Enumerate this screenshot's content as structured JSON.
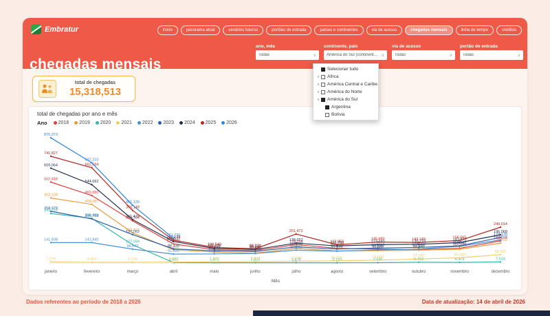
{
  "brand": {
    "name": "Embratur"
  },
  "nav": {
    "items": [
      {
        "label": "início",
        "active": false
      },
      {
        "label": "panorama atual",
        "active": false
      },
      {
        "label": "cenários futuros",
        "active": false
      },
      {
        "label": "portões de entrada",
        "active": false
      },
      {
        "label": "países e continentes",
        "active": false
      },
      {
        "label": "via de acesso",
        "active": false
      },
      {
        "label": "chegadas mensais",
        "active": true
      },
      {
        "label": "linha de tempo",
        "active": false
      },
      {
        "label": "créditos",
        "active": false
      }
    ]
  },
  "page_title": "chegadas mensais",
  "filters": [
    {
      "label": "ano, mês",
      "value": "Todas"
    },
    {
      "label": "continente, país",
      "value": "América do Sul (continentes) + A..."
    },
    {
      "label": "via de acesso",
      "value": "Todas"
    },
    {
      "label": "portão de entrada",
      "value": "Todas"
    }
  ],
  "continent_dropdown": {
    "items": [
      {
        "label": "Selecionar tudo",
        "checked": true,
        "expandable": false,
        "level": 0
      },
      {
        "label": "África",
        "checked": false,
        "expandable": true,
        "level": 0
      },
      {
        "label": "América Central e Caribe",
        "checked": false,
        "expandable": true,
        "level": 0
      },
      {
        "label": "América do Norte",
        "checked": false,
        "expandable": true,
        "level": 0
      },
      {
        "label": "América do Sul",
        "checked": true,
        "expandable": true,
        "level": 0
      },
      {
        "label": "Argentina",
        "checked": true,
        "expandable": false,
        "level": 1
      },
      {
        "label": "Bolívia",
        "checked": false,
        "expandable": false,
        "level": 1
      }
    ]
  },
  "kpi": {
    "label": "total de chegadas",
    "value": "15,318,513"
  },
  "chart_data": {
    "type": "line",
    "title": "total de chegadas por ano e mês",
    "legend_title": "Ano",
    "xlabel": "Mês",
    "ylabel": "",
    "ylim": [
      0,
      900000
    ],
    "grid": false,
    "legend_position": "top-left",
    "categories": [
      "janeiro",
      "fevereiro",
      "março",
      "abril",
      "maio",
      "junho",
      "julho",
      "agosto",
      "setembro",
      "outubro",
      "novembro",
      "dezembro"
    ],
    "series": [
      {
        "name": "2018",
        "color": "#E0403A",
        "values": [
          562448,
          469080,
          293164,
          131900,
          92310,
          86120,
          128034,
          101870,
          96230,
          94540,
          101780,
          153594
        ]
      },
      {
        "name": "2019",
        "color": "#E89C3F",
        "values": [
          452138,
          408087,
          209402,
          91822,
          75410,
          68540,
          101230,
          84340,
          86110,
          88870,
          95450,
          138500
        ]
      },
      {
        "name": "2020",
        "color": "#35B5AC",
        "values": [
          343763,
          310420,
          127059,
          3000,
          1870,
          1820,
          1878,
          2110,
          2540,
          5418,
          4479,
          7534
        ]
      },
      {
        "name": "2021",
        "color": "#F0CE63",
        "values": [
          7228,
          4993,
          5230,
          6120,
          7840,
          9230,
          12040,
          15210,
          19880,
          27760,
          36540,
          58420
        ]
      },
      {
        "name": "2022",
        "color": "#4A90D9",
        "values": [
          141608,
          141840,
          96043,
          61822,
          63229,
          66120,
          89266,
          81821,
          90688,
          97300,
          116540,
          160230
        ]
      },
      {
        "name": "2023",
        "color": "#2B5FA8",
        "values": [
          358978,
          306758,
          197063,
          98130,
          84120,
          79830,
          112040,
          97210,
          103880,
          108760,
          118540,
          178170
        ]
      },
      {
        "name": "2024",
        "color": "#25304F",
        "values": [
          659064,
          544692,
          301420,
          149537,
          101230,
          94340,
          138022,
          118760,
          127340,
          130210,
          141870,
          196068
        ]
      },
      {
        "name": "2025",
        "color": "#B3261E",
        "values": [
          741827,
          662694,
          365149,
          159138,
          108540,
          99230,
          201472,
          127056,
          145680,
          143149,
          156065,
          249014
        ]
      },
      {
        "name": "2026",
        "color": "#2E86DE",
        "values": [
          870373,
          697210,
          401120,
          171230,
          null,
          null,
          null,
          null,
          null,
          null,
          null,
          null
        ]
      }
    ]
  },
  "footer": {
    "left": "Dados referentes ao período de 2018 a 2026",
    "right": "Data de atualização: 14 de abril de 2026"
  }
}
